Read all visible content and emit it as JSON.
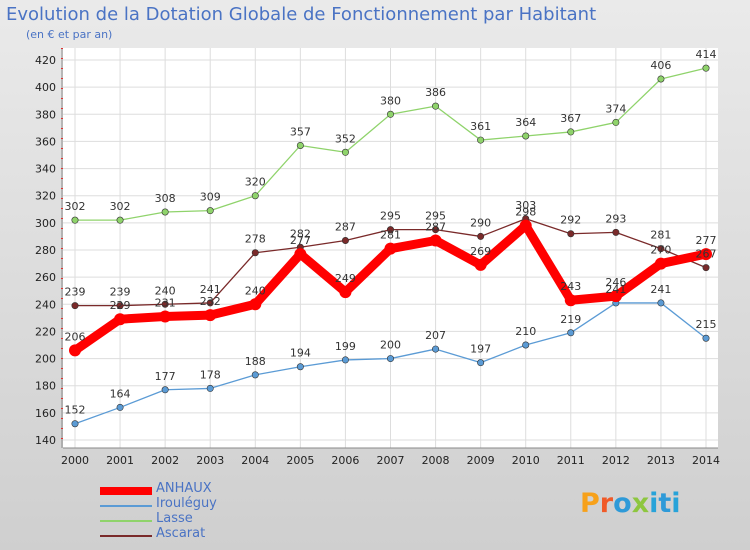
{
  "title": "Evolution de la Dotation Globale de Fonctionnement par Habitant",
  "subtitle": "(en € et par an)",
  "brand": "Proxiti",
  "colors": {
    "title": "#4a73c4",
    "brand_p": "#f7a11a",
    "brand_r": "#f05a28",
    "brand_o": "#2e9ad8",
    "brand_x": "#8dc63f",
    "brand_i": "#27a3d9"
  },
  "chart_data": {
    "type": "line",
    "title": "Evolution de la Dotation Globale de Fonctionnement par Habitant",
    "subtitle": "(en € et par an)",
    "x": [
      2000,
      2001,
      2002,
      2003,
      2004,
      2005,
      2006,
      2007,
      2008,
      2009,
      2010,
      2011,
      2012,
      2013,
      2014
    ],
    "ylim": [
      140,
      420
    ],
    "yticks": [
      140,
      160,
      180,
      200,
      220,
      240,
      260,
      280,
      300,
      320,
      340,
      360,
      380,
      400,
      420
    ],
    "grid": true,
    "legend_position": "bottom-left",
    "series": [
      {
        "name": "ANHAUX",
        "color": "#ff0000",
        "values": [
          206,
          229,
          231,
          232,
          240,
          277,
          249,
          281,
          287,
          269,
          298,
          243,
          246,
          270,
          277
        ]
      },
      {
        "name": "Irouléguy",
        "color": "#5b9bd5",
        "values": [
          152,
          164,
          177,
          178,
          188,
          194,
          199,
          200,
          207,
          197,
          210,
          219,
          241,
          241,
          215
        ]
      },
      {
        "name": "Lasse",
        "color": "#8fd36b",
        "values": [
          302,
          302,
          308,
          309,
          320,
          357,
          352,
          380,
          386,
          361,
          364,
          367,
          374,
          406,
          414
        ]
      },
      {
        "name": "Ascarat",
        "color": "#7a2a2a",
        "values": [
          239,
          239,
          240,
          241,
          278,
          282,
          287,
          295,
          295,
          290,
          303,
          292,
          293,
          281,
          267
        ]
      }
    ]
  }
}
